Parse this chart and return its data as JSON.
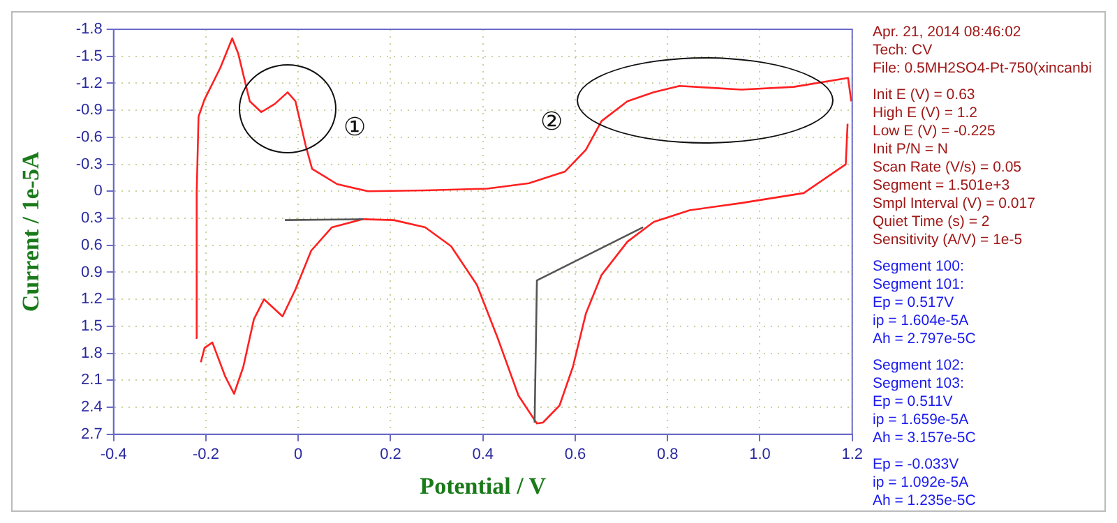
{
  "chart_data": {
    "type": "line",
    "xlabel": "Potential / V",
    "ylabel": "Current / 1e-5A",
    "xlim": [
      -0.4,
      1.2
    ],
    "xticks": [
      -0.4,
      -0.2,
      0,
      0.2,
      0.4,
      0.6,
      0.8,
      {
        "value": 1,
        "label": "1.0"
      },
      1.2
    ],
    "ylim": [
      2.7,
      -1.8
    ],
    "yticks": [
      -1.8,
      -1.5,
      -1.2,
      -0.9,
      -0.6,
      -0.3,
      0,
      0.3,
      0.6,
      0.9,
      1.2,
      1.5,
      1.8,
      2.1,
      2.4,
      2.7
    ],
    "grid": true,
    "marker": "none",
    "series": [
      {
        "color": "#ff2020",
        "x": [
          -0.222,
          -0.22,
          -0.216,
          -0.203,
          -0.169,
          -0.143,
          -0.13,
          -0.105,
          -0.08,
          -0.051,
          -0.023,
          -0.006,
          0.016,
          0.03,
          0.084,
          0.151,
          0.275,
          0.41,
          0.5,
          0.578,
          0.623,
          0.657,
          0.713,
          0.77,
          0.826,
          0.893,
          0.96,
          1.073,
          1.191,
          1.198
        ],
        "values": [
          1.63,
          0.02,
          -0.83,
          -1.02,
          -1.37,
          -1.7,
          -1.53,
          -1.0,
          -0.88,
          -0.97,
          -1.1,
          -1.0,
          -0.51,
          -0.25,
          -0.08,
          0.0,
          -0.01,
          -0.03,
          -0.09,
          -0.22,
          -0.46,
          -0.78,
          -1.0,
          -1.1,
          -1.17,
          -1.15,
          -1.13,
          -1.16,
          -1.26,
          -1.0
        ]
      },
      {
        "color": "#ff2020",
        "x": [
          -0.211,
          -0.203,
          -0.186,
          -0.158,
          -0.139,
          -0.119,
          -0.096,
          -0.074,
          -0.034,
          -0.006,
          0.028,
          0.073,
          0.14,
          0.207,
          0.275,
          0.331,
          0.387,
          0.432,
          0.477,
          0.517,
          0.53,
          0.566,
          0.595,
          0.623,
          0.657,
          0.713,
          0.77,
          0.848,
          0.96,
          1.095,
          1.186,
          1.19
        ],
        "values": [
          1.9,
          1.74,
          1.68,
          2.06,
          2.25,
          1.95,
          1.42,
          1.2,
          1.39,
          1.09,
          0.66,
          0.4,
          0.31,
          0.32,
          0.4,
          0.61,
          1.04,
          1.63,
          2.27,
          2.58,
          2.57,
          2.38,
          1.95,
          1.36,
          0.93,
          0.56,
          0.34,
          0.21,
          0.13,
          0.02,
          -0.3,
          -0.75
        ]
      },
      {
        "color": "#555555",
        "x": [
          -0.029,
          0.14
        ],
        "values": [
          0.32,
          0.31
        ]
      },
      {
        "color": "#555555",
        "x": [
          0.512,
          0.517,
          0.747
        ],
        "values": [
          2.57,
          0.99,
          0.4
        ]
      }
    ],
    "annotations": [
      "①",
      "②",
      "Apr. 21, 2014   08:46:02",
      "Tech: CV",
      "File: 0.5MH2SO4-Pt-750(xincanbi",
      "Init E (V) = 0.63",
      "High E (V) = 1.2",
      "Low E (V) = -0.225",
      "Init P/N = N",
      "Scan Rate (V/s) = 0.05",
      "Segment = 1.501e+3",
      "Smpl Interval (V) = 0.017",
      "Quiet Time (s) = 2",
      "Sensitivity (A/V) = 1e-5",
      "Segment 100:",
      "Segment 101:",
      "Ep = 0.517V",
      "ip = 1.604e-5A",
      "Ah = 2.797e-5C",
      "Segment 102:",
      "Segment 103:",
      "Ep = 0.511V",
      "ip = 1.659e-5A",
      "Ah = 3.157e-5C",
      "Ep = -0.033V",
      "ip = 1.092e-5A",
      "Ah = 1.235e-5C"
    ]
  }
}
